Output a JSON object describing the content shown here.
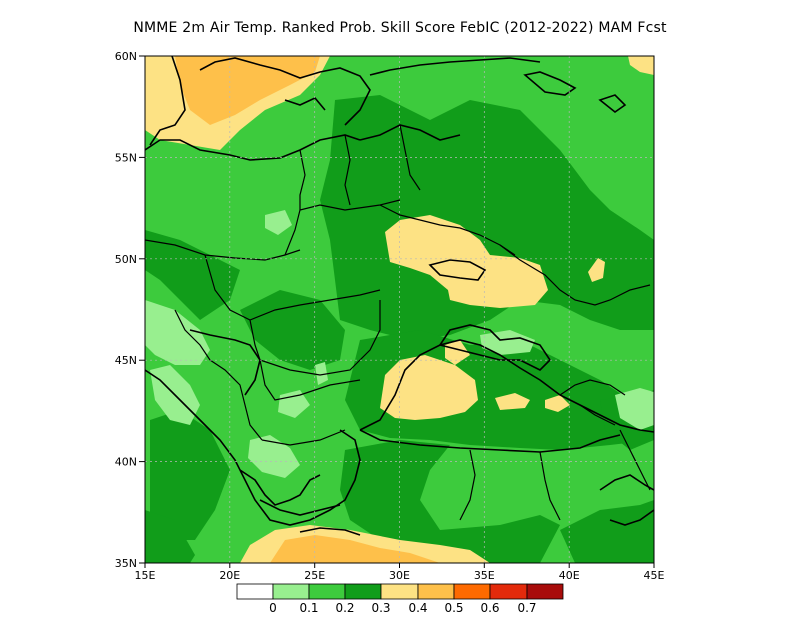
{
  "title": "NMME  2m Air Temp. Ranked Prob. Skill Score FebIC (2012-2022) MAM Fcst",
  "map": {
    "lat_labels": [
      "60N",
      "55N",
      "50N",
      "45N",
      "40N",
      "35N"
    ],
    "lon_labels": [
      "15E",
      "20E",
      "25E",
      "30E",
      "35E",
      "40E",
      "45E"
    ],
    "colors": {
      "bin_0.2_0.3": "#119d1a",
      "bin_0.1_0.2": "#3dcb3d",
      "bin_0_0.1": "#98ef8f",
      "bin_0.3_0.4": "#fde284",
      "bin_0.4_0.5": "#fec04a"
    }
  },
  "colorbar": {
    "labels": [
      "0",
      "0.1",
      "0.2",
      "0.3",
      "0.4",
      "0.5",
      "0.6",
      "0.7"
    ],
    "colors": [
      "#ffffff",
      "#98ef8f",
      "#3dcb3d",
      "#119d1a",
      "#fde284",
      "#fec04a",
      "#fe6a00",
      "#e32a0b",
      "#a80c0b"
    ]
  }
}
